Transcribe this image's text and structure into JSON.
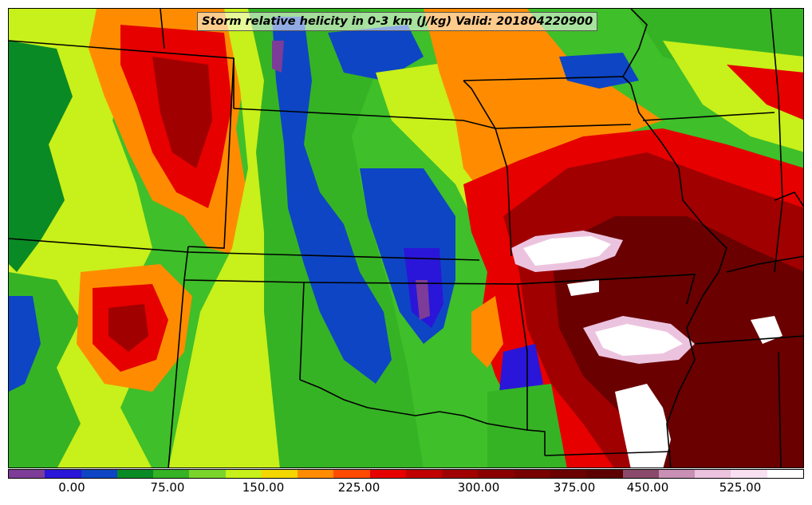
{
  "title": "Storm relative helicity in 0-3 km (J/kg) Valid: 201804220900",
  "colorbar": {
    "colors": [
      "#7d3c98",
      "#2a16d8",
      "#0e45c4",
      "#0a8a25",
      "#36b324",
      "#7ad42c",
      "#c8f01a",
      "#f4d600",
      "#ff8c00",
      "#ff4a00",
      "#e60000",
      "#c00000",
      "#a00000",
      "#8a0000",
      "#780000",
      "#6a0000",
      "#5c0000",
      "#8b4a6b",
      "#c98fb5",
      "#ecc3de",
      "#f8e0f0",
      "#ffffff"
    ],
    "tick_labels": [
      "0.00",
      "75.00",
      "150.00",
      "225.00",
      "300.00",
      "375.00",
      "450.00",
      "525.00"
    ]
  },
  "map": {
    "background_color": "#3fbf2a",
    "icons": [
      "state-boundaries",
      "helicity-contours"
    ]
  }
}
